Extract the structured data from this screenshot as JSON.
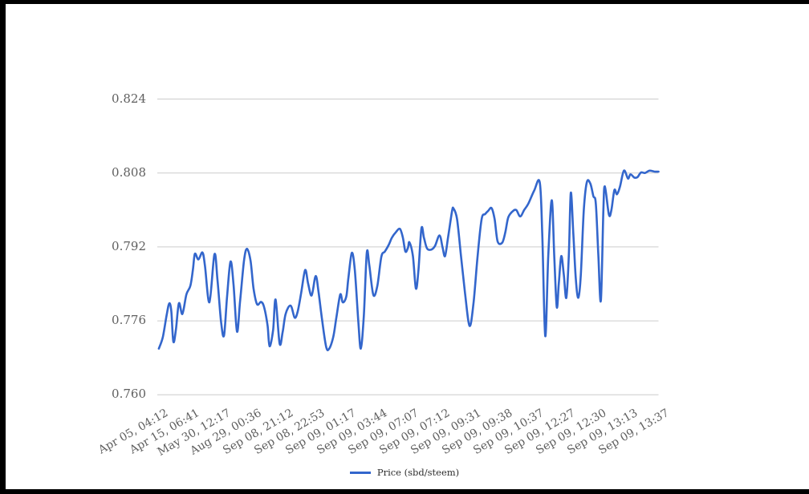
{
  "frame": {
    "border_color": "#000000",
    "background_color": "#ffffff"
  },
  "chart_data": {
    "type": "line",
    "title": "",
    "xlabel": "",
    "ylabel": "",
    "ylim": [
      0.76,
      0.824
    ],
    "grid": true,
    "gridline_color": "#cccccc",
    "axis_label_color": "#5f5f5f",
    "legend": {
      "position": "bottom",
      "label": "Price (sbd/steem)"
    },
    "y_ticks": [
      0.824,
      0.808,
      0.792,
      0.776,
      0.76
    ],
    "y_tick_labels": [
      "0.824",
      "0.808",
      "0.792",
      "0.776",
      "0.760"
    ],
    "x_tick_labels": [
      "Apr 05, 04:12",
      "Apr 15, 06:41",
      "May 30, 12:17",
      "Aug 29, 00:36",
      "Sep 08, 21:12",
      "Sep 08, 22:53",
      "Sep 09, 01:17",
      "Sep 09, 03:44",
      "Sep 09, 07:07",
      "Sep 09, 07:12",
      "Sep 09, 09:31",
      "Sep 09, 09:38",
      "Sep 09, 10:37",
      "Sep 09, 12:27",
      "Sep 09, 12:30",
      "Sep 09, 13:13",
      "Sep 09, 13:37"
    ],
    "series": [
      {
        "name": "Price (sbd/steem)",
        "color": "#3366cc",
        "points": [
          [
            0.003,
            0.77
          ],
          [
            0.011,
            0.7725
          ],
          [
            0.019,
            0.7775
          ],
          [
            0.024,
            0.7798
          ],
          [
            0.028,
            0.778
          ],
          [
            0.032,
            0.7715
          ],
          [
            0.037,
            0.774
          ],
          [
            0.043,
            0.7798
          ],
          [
            0.05,
            0.7775
          ],
          [
            0.058,
            0.7817
          ],
          [
            0.066,
            0.7836
          ],
          [
            0.071,
            0.787
          ],
          [
            0.075,
            0.7905
          ],
          [
            0.082,
            0.7893
          ],
          [
            0.09,
            0.7908
          ],
          [
            0.095,
            0.788
          ],
          [
            0.104,
            0.78
          ],
          [
            0.114,
            0.7904
          ],
          [
            0.12,
            0.785
          ],
          [
            0.127,
            0.776
          ],
          [
            0.133,
            0.7728
          ],
          [
            0.139,
            0.781
          ],
          [
            0.146,
            0.7888
          ],
          [
            0.152,
            0.784
          ],
          [
            0.159,
            0.7737
          ],
          [
            0.165,
            0.78
          ],
          [
            0.173,
            0.789
          ],
          [
            0.179,
            0.7916
          ],
          [
            0.186,
            0.789
          ],
          [
            0.192,
            0.783
          ],
          [
            0.199,
            0.7796
          ],
          [
            0.207,
            0.7801
          ],
          [
            0.213,
            0.779
          ],
          [
            0.22,
            0.775
          ],
          [
            0.224,
            0.7705
          ],
          [
            0.231,
            0.774
          ],
          [
            0.236,
            0.7806
          ],
          [
            0.244,
            0.7711
          ],
          [
            0.25,
            0.7735
          ],
          [
            0.256,
            0.7775
          ],
          [
            0.266,
            0.7793
          ],
          [
            0.274,
            0.7767
          ],
          [
            0.28,
            0.778
          ],
          [
            0.287,
            0.782
          ],
          [
            0.295,
            0.787
          ],
          [
            0.301,
            0.784
          ],
          [
            0.308,
            0.7815
          ],
          [
            0.316,
            0.7857
          ],
          [
            0.322,
            0.782
          ],
          [
            0.329,
            0.776
          ],
          [
            0.337,
            0.7703
          ],
          [
            0.343,
            0.77
          ],
          [
            0.351,
            0.7725
          ],
          [
            0.357,
            0.7765
          ],
          [
            0.365,
            0.7817
          ],
          [
            0.37,
            0.78
          ],
          [
            0.377,
            0.7812
          ],
          [
            0.381,
            0.785
          ],
          [
            0.388,
            0.7907
          ],
          [
            0.394,
            0.787
          ],
          [
            0.401,
            0.776
          ],
          [
            0.406,
            0.77
          ],
          [
            0.412,
            0.777
          ],
          [
            0.418,
            0.7907
          ],
          [
            0.423,
            0.788
          ],
          [
            0.431,
            0.7816
          ],
          [
            0.439,
            0.7836
          ],
          [
            0.447,
            0.7899
          ],
          [
            0.454,
            0.791
          ],
          [
            0.462,
            0.7925
          ],
          [
            0.468,
            0.794
          ],
          [
            0.476,
            0.7952
          ],
          [
            0.484,
            0.7959
          ],
          [
            0.49,
            0.794
          ],
          [
            0.495,
            0.791
          ],
          [
            0.5,
            0.7918
          ],
          [
            0.503,
            0.793
          ],
          [
            0.51,
            0.79
          ],
          [
            0.516,
            0.783
          ],
          [
            0.521,
            0.787
          ],
          [
            0.527,
            0.796
          ],
          [
            0.532,
            0.794
          ],
          [
            0.538,
            0.7917
          ],
          [
            0.546,
            0.7914
          ],
          [
            0.554,
            0.7922
          ],
          [
            0.563,
            0.7945
          ],
          [
            0.569,
            0.792
          ],
          [
            0.574,
            0.79
          ],
          [
            0.58,
            0.794
          ],
          [
            0.588,
            0.7997
          ],
          [
            0.591,
            0.8003
          ],
          [
            0.598,
            0.798
          ],
          [
            0.606,
            0.79
          ],
          [
            0.614,
            0.782
          ],
          [
            0.623,
            0.7749
          ],
          [
            0.631,
            0.78
          ],
          [
            0.639,
            0.79
          ],
          [
            0.647,
            0.798
          ],
          [
            0.654,
            0.7991
          ],
          [
            0.66,
            0.7998
          ],
          [
            0.667,
            0.8004
          ],
          [
            0.673,
            0.798
          ],
          [
            0.679,
            0.7932
          ],
          [
            0.688,
            0.7929
          ],
          [
            0.694,
            0.795
          ],
          [
            0.7,
            0.7983
          ],
          [
            0.708,
            0.7996
          ],
          [
            0.716,
            0.8
          ],
          [
            0.724,
            0.7986
          ],
          [
            0.732,
            0.8
          ],
          [
            0.74,
            0.8013
          ],
          [
            0.752,
            0.8042
          ],
          [
            0.763,
            0.806
          ],
          [
            0.768,
            0.795
          ],
          [
            0.774,
            0.7727
          ],
          [
            0.78,
            0.79
          ],
          [
            0.787,
            0.8021
          ],
          [
            0.792,
            0.79
          ],
          [
            0.797,
            0.779
          ],
          [
            0.801,
            0.784
          ],
          [
            0.806,
            0.79
          ],
          [
            0.811,
            0.786
          ],
          [
            0.816,
            0.781
          ],
          [
            0.821,
            0.79
          ],
          [
            0.825,
            0.8037
          ],
          [
            0.83,
            0.795
          ],
          [
            0.835,
            0.785
          ],
          [
            0.84,
            0.781
          ],
          [
            0.845,
            0.786
          ],
          [
            0.851,
            0.8
          ],
          [
            0.857,
            0.806
          ],
          [
            0.864,
            0.8057
          ],
          [
            0.87,
            0.803
          ],
          [
            0.875,
            0.8013
          ],
          [
            0.88,
            0.79
          ],
          [
            0.885,
            0.7804
          ],
          [
            0.89,
            0.8
          ],
          [
            0.893,
            0.8051
          ],
          [
            0.901,
            0.799
          ],
          [
            0.906,
            0.8
          ],
          [
            0.912,
            0.8043
          ],
          [
            0.917,
            0.8034
          ],
          [
            0.923,
            0.805
          ],
          [
            0.931,
            0.8085
          ],
          [
            0.939,
            0.8068
          ],
          [
            0.944,
            0.8077
          ],
          [
            0.952,
            0.807
          ],
          [
            0.958,
            0.8071
          ],
          [
            0.965,
            0.8081
          ],
          [
            0.973,
            0.808
          ],
          [
            0.982,
            0.8085
          ],
          [
            0.992,
            0.8083
          ],
          [
            1.0,
            0.8083
          ]
        ]
      }
    ]
  }
}
